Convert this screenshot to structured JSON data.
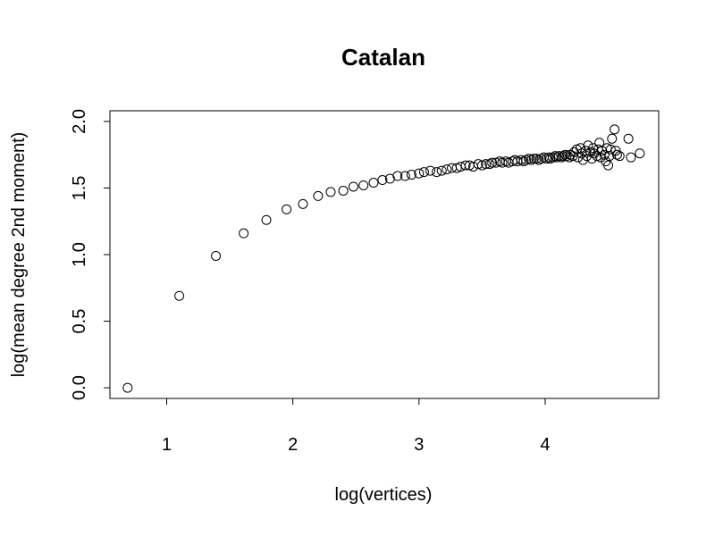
{
  "chart_data": {
    "type": "scatter",
    "title": "Catalan",
    "xlabel": "log(vertices)",
    "ylabel": "log(mean degree 2nd moment)",
    "xlim": [
      0.55,
      4.9
    ],
    "ylim": [
      -0.08,
      2.08
    ],
    "x_ticks": [
      1,
      2,
      3,
      4
    ],
    "x_tick_labels": [
      "1",
      "2",
      "3",
      "4"
    ],
    "y_ticks": [
      0.0,
      0.5,
      1.0,
      1.5,
      2.0
    ],
    "y_tick_labels": [
      "0.0",
      "0.5",
      "1.0",
      "1.5",
      "2.0"
    ],
    "marker": "open-circle",
    "grid": false,
    "series": [
      {
        "points": [
          [
            0.69,
            0.0
          ],
          [
            1.1,
            0.69
          ],
          [
            1.39,
            0.99
          ],
          [
            1.61,
            1.16
          ],
          [
            1.79,
            1.26
          ],
          [
            1.95,
            1.34
          ],
          [
            2.08,
            1.38
          ],
          [
            2.2,
            1.44
          ],
          [
            2.3,
            1.47
          ],
          [
            2.4,
            1.48
          ],
          [
            2.48,
            1.51
          ],
          [
            2.56,
            1.52
          ],
          [
            2.64,
            1.54
          ],
          [
            2.71,
            1.56
          ],
          [
            2.77,
            1.57
          ],
          [
            2.83,
            1.59
          ],
          [
            2.89,
            1.59
          ],
          [
            2.94,
            1.6
          ],
          [
            3.0,
            1.61
          ],
          [
            3.04,
            1.62
          ],
          [
            3.09,
            1.63
          ],
          [
            3.14,
            1.62
          ],
          [
            3.18,
            1.63
          ],
          [
            3.22,
            1.64
          ],
          [
            3.26,
            1.65
          ],
          [
            3.3,
            1.65
          ],
          [
            3.33,
            1.66
          ],
          [
            3.37,
            1.67
          ],
          [
            3.4,
            1.67
          ],
          [
            3.43,
            1.66
          ],
          [
            3.47,
            1.68
          ],
          [
            3.5,
            1.67
          ],
          [
            3.53,
            1.68
          ],
          [
            3.56,
            1.68
          ],
          [
            3.58,
            1.69
          ],
          [
            3.61,
            1.69
          ],
          [
            3.64,
            1.7
          ],
          [
            3.66,
            1.69
          ],
          [
            3.69,
            1.7
          ],
          [
            3.71,
            1.69
          ],
          [
            3.74,
            1.7
          ],
          [
            3.76,
            1.71
          ],
          [
            3.78,
            1.7
          ],
          [
            3.81,
            1.71
          ],
          [
            3.83,
            1.7
          ],
          [
            3.85,
            1.71
          ],
          [
            3.87,
            1.72
          ],
          [
            3.89,
            1.71
          ],
          [
            3.91,
            1.72
          ],
          [
            3.93,
            1.72
          ],
          [
            3.95,
            1.71
          ],
          [
            3.97,
            1.72
          ],
          [
            3.99,
            1.73
          ],
          [
            4.01,
            1.72
          ],
          [
            4.03,
            1.73
          ],
          [
            4.04,
            1.72
          ],
          [
            4.06,
            1.73
          ],
          [
            4.08,
            1.74
          ],
          [
            4.09,
            1.73
          ],
          [
            4.11,
            1.74
          ],
          [
            4.13,
            1.73
          ],
          [
            4.14,
            1.74
          ],
          [
            4.16,
            1.75
          ],
          [
            4.17,
            1.74
          ],
          [
            4.19,
            1.73
          ],
          [
            4.2,
            1.75
          ],
          [
            4.22,
            1.74
          ],
          [
            4.23,
            1.77
          ],
          [
            4.25,
            1.79
          ],
          [
            4.26,
            1.73
          ],
          [
            4.28,
            1.8
          ],
          [
            4.29,
            1.76
          ],
          [
            4.3,
            1.71
          ],
          [
            4.32,
            1.78
          ],
          [
            4.33,
            1.74
          ],
          [
            4.34,
            1.82
          ],
          [
            4.36,
            1.77
          ],
          [
            4.37,
            1.72
          ],
          [
            4.38,
            1.8
          ],
          [
            4.39,
            1.76
          ],
          [
            4.41,
            1.74
          ],
          [
            4.42,
            1.79
          ],
          [
            4.43,
            1.84
          ],
          [
            4.44,
            1.73
          ],
          [
            4.45,
            1.78
          ],
          [
            4.47,
            1.75
          ],
          [
            4.48,
            1.7
          ],
          [
            4.49,
            1.8
          ],
          [
            4.5,
            1.67
          ],
          [
            4.51,
            1.74
          ],
          [
            4.52,
            1.79
          ],
          [
            4.53,
            1.87
          ],
          [
            4.55,
            1.94
          ],
          [
            4.56,
            1.78
          ],
          [
            4.57,
            1.75
          ],
          [
            4.59,
            1.74
          ],
          [
            4.66,
            1.87
          ],
          [
            4.68,
            1.73
          ],
          [
            4.75,
            1.76
          ]
        ]
      }
    ]
  }
}
